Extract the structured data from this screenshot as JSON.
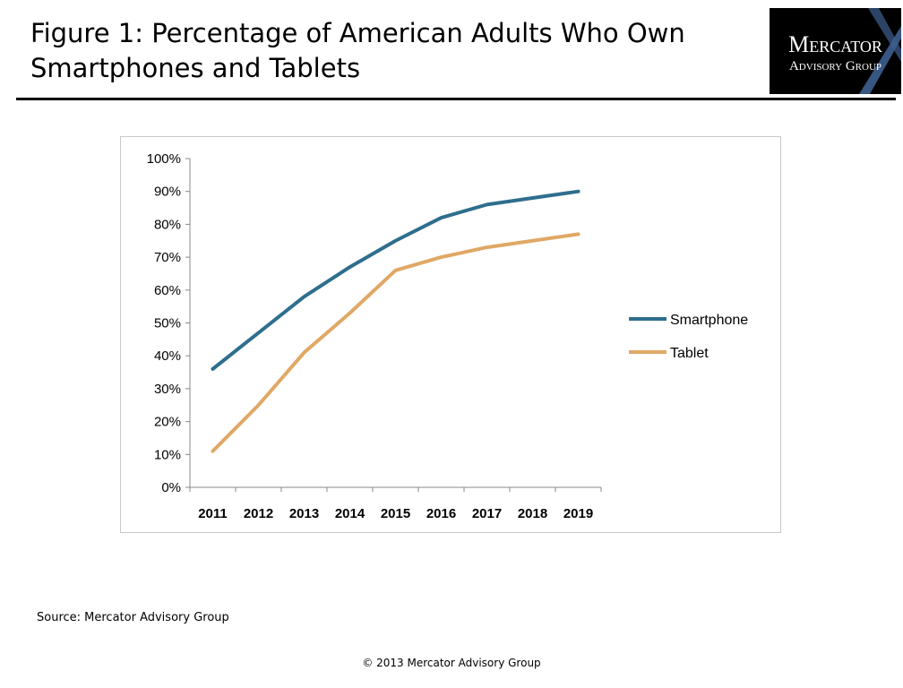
{
  "slide": {
    "title": "Figure 1: Percentage of American Adults Who Own Smartphones and Tablets",
    "source": "Source: Mercator Advisory Group",
    "copyright": "© 2013  Mercator Advisory Group"
  },
  "logo": {
    "line1": "Mercator",
    "line2": "Advisory Group",
    "accent_color": "#4a6fa5"
  },
  "chart_data": {
    "type": "line",
    "title": "",
    "xlabel": "",
    "ylabel": "",
    "x": [
      "2011",
      "2012",
      "2013",
      "2014",
      "2015",
      "2016",
      "2017",
      "2018",
      "2019"
    ],
    "ylim": [
      0,
      100
    ],
    "y_ticks": [
      "0%",
      "10%",
      "20%",
      "30%",
      "40%",
      "50%",
      "60%",
      "70%",
      "80%",
      "90%",
      "100%"
    ],
    "grid": false,
    "legend_position": "right",
    "series": [
      {
        "name": "Smartphone",
        "color": "#2e6e8e",
        "values": [
          36,
          47,
          58,
          67,
          75,
          82,
          86,
          88,
          90
        ]
      },
      {
        "name": "Tablet",
        "color": "#e0a865",
        "values": [
          11,
          25,
          41,
          53,
          66,
          70,
          73,
          75,
          77
        ]
      }
    ]
  }
}
